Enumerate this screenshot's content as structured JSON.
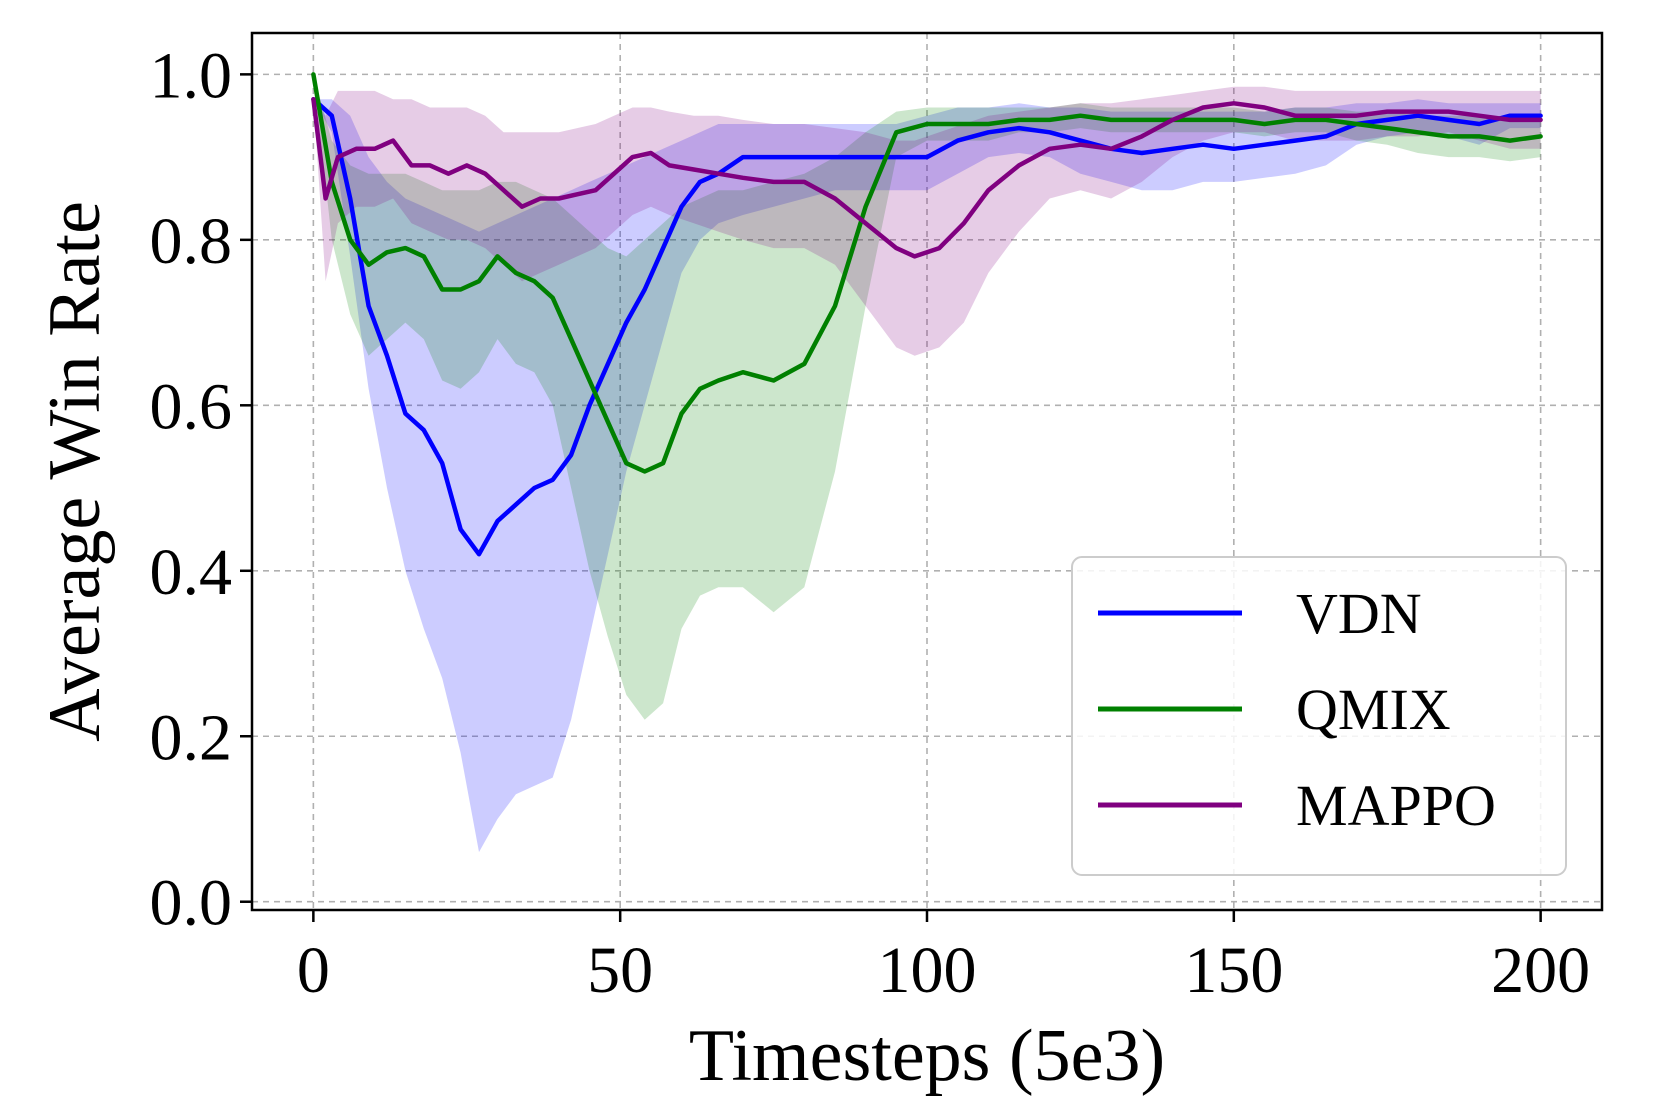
{
  "chart_data": {
    "type": "line",
    "title": "",
    "xlabel": "Timesteps (5e3)",
    "ylabel": "Average Win Rate",
    "xlim": [
      -10,
      210
    ],
    "ylim": [
      -0.01,
      1.05
    ],
    "xticks": [
      0,
      50,
      100,
      150,
      200
    ],
    "yticks": [
      0.0,
      0.2,
      0.4,
      0.6,
      0.8,
      1.0
    ],
    "xtick_labels": [
      "0",
      "50",
      "100",
      "150",
      "200"
    ],
    "ytick_labels": [
      "0.0",
      "0.2",
      "0.4",
      "0.6",
      "0.8",
      "1.0"
    ],
    "grid": true,
    "legend_position": "lower-right",
    "legend": [
      "VDN",
      "QMIX",
      "MAPPO"
    ],
    "series": [
      {
        "name": "VDN",
        "color": "#0000ff",
        "x": [
          0,
          3,
          6,
          9,
          12,
          15,
          18,
          21,
          24,
          27,
          30,
          33,
          36,
          39,
          42,
          45,
          48,
          51,
          54,
          57,
          60,
          63,
          66,
          70,
          75,
          80,
          85,
          90,
          95,
          100,
          105,
          110,
          115,
          120,
          125,
          130,
          135,
          140,
          145,
          150,
          155,
          160,
          165,
          170,
          175,
          180,
          185,
          190,
          195,
          200
        ],
        "values": [
          0.97,
          0.95,
          0.85,
          0.72,
          0.66,
          0.59,
          0.57,
          0.53,
          0.45,
          0.42,
          0.46,
          0.48,
          0.5,
          0.51,
          0.54,
          0.6,
          0.65,
          0.7,
          0.74,
          0.79,
          0.84,
          0.87,
          0.88,
          0.9,
          0.9,
          0.9,
          0.9,
          0.9,
          0.9,
          0.9,
          0.92,
          0.93,
          0.935,
          0.93,
          0.92,
          0.91,
          0.905,
          0.91,
          0.915,
          0.91,
          0.915,
          0.92,
          0.925,
          0.94,
          0.945,
          0.95,
          0.945,
          0.94,
          0.95,
          0.95
        ],
        "upper": [
          0.97,
          0.97,
          0.95,
          0.9,
          0.87,
          0.85,
          0.84,
          0.83,
          0.82,
          0.81,
          0.82,
          0.83,
          0.84,
          0.85,
          0.86,
          0.87,
          0.88,
          0.89,
          0.9,
          0.91,
          0.92,
          0.93,
          0.94,
          0.94,
          0.94,
          0.94,
          0.94,
          0.94,
          0.94,
          0.95,
          0.96,
          0.96,
          0.965,
          0.96,
          0.96,
          0.955,
          0.955,
          0.955,
          0.955,
          0.955,
          0.955,
          0.96,
          0.96,
          0.965,
          0.965,
          0.97,
          0.965,
          0.965,
          0.965,
          0.965
        ],
        "lower": [
          0.97,
          0.93,
          0.78,
          0.62,
          0.5,
          0.4,
          0.33,
          0.27,
          0.18,
          0.06,
          0.1,
          0.13,
          0.14,
          0.15,
          0.22,
          0.32,
          0.42,
          0.52,
          0.6,
          0.68,
          0.76,
          0.8,
          0.82,
          0.83,
          0.84,
          0.85,
          0.86,
          0.86,
          0.86,
          0.86,
          0.88,
          0.9,
          0.905,
          0.9,
          0.88,
          0.87,
          0.86,
          0.86,
          0.87,
          0.87,
          0.875,
          0.88,
          0.89,
          0.915,
          0.925,
          0.93,
          0.925,
          0.915,
          0.935,
          0.935
        ]
      },
      {
        "name": "QMIX",
        "color": "#008000",
        "x": [
          0,
          3,
          6,
          9,
          12,
          15,
          18,
          21,
          24,
          27,
          30,
          33,
          36,
          39,
          42,
          45,
          48,
          51,
          54,
          57,
          60,
          63,
          66,
          70,
          75,
          80,
          85,
          90,
          95,
          100,
          105,
          110,
          115,
          120,
          125,
          130,
          135,
          140,
          145,
          150,
          155,
          160,
          165,
          170,
          175,
          180,
          185,
          190,
          195,
          200
        ],
        "values": [
          1.0,
          0.87,
          0.8,
          0.77,
          0.785,
          0.79,
          0.78,
          0.74,
          0.74,
          0.75,
          0.78,
          0.76,
          0.75,
          0.73,
          0.68,
          0.63,
          0.58,
          0.53,
          0.52,
          0.53,
          0.59,
          0.62,
          0.63,
          0.64,
          0.63,
          0.65,
          0.72,
          0.84,
          0.93,
          0.94,
          0.94,
          0.94,
          0.945,
          0.945,
          0.95,
          0.945,
          0.945,
          0.945,
          0.945,
          0.945,
          0.94,
          0.945,
          0.945,
          0.94,
          0.935,
          0.93,
          0.925,
          0.925,
          0.92,
          0.925
        ],
        "upper": [
          1.0,
          0.92,
          0.89,
          0.88,
          0.88,
          0.88,
          0.87,
          0.86,
          0.86,
          0.86,
          0.87,
          0.87,
          0.86,
          0.85,
          0.83,
          0.81,
          0.79,
          0.78,
          0.8,
          0.82,
          0.84,
          0.85,
          0.86,
          0.86,
          0.87,
          0.88,
          0.9,
          0.93,
          0.955,
          0.96,
          0.96,
          0.96,
          0.96,
          0.96,
          0.965,
          0.96,
          0.96,
          0.96,
          0.96,
          0.96,
          0.955,
          0.96,
          0.96,
          0.955,
          0.955,
          0.95,
          0.95,
          0.95,
          0.945,
          0.945
        ],
        "lower": [
          1.0,
          0.8,
          0.71,
          0.66,
          0.68,
          0.7,
          0.68,
          0.63,
          0.62,
          0.64,
          0.68,
          0.65,
          0.64,
          0.6,
          0.5,
          0.4,
          0.32,
          0.25,
          0.22,
          0.24,
          0.33,
          0.37,
          0.38,
          0.38,
          0.35,
          0.38,
          0.52,
          0.72,
          0.9,
          0.92,
          0.92,
          0.92,
          0.93,
          0.93,
          0.935,
          0.93,
          0.93,
          0.93,
          0.93,
          0.93,
          0.925,
          0.93,
          0.93,
          0.92,
          0.915,
          0.905,
          0.9,
          0.9,
          0.895,
          0.9
        ]
      },
      {
        "name": "MAPPO",
        "color": "#800080",
        "x": [
          0,
          2,
          4,
          7,
          10,
          13,
          16,
          19,
          22,
          25,
          28,
          31,
          34,
          37,
          40,
          43,
          46,
          49,
          52,
          55,
          58,
          62,
          66,
          70,
          75,
          80,
          85,
          90,
          95,
          98,
          102,
          106,
          110,
          115,
          120,
          125,
          130,
          135,
          140,
          145,
          150,
          155,
          160,
          165,
          170,
          175,
          180,
          185,
          190,
          195,
          200
        ],
        "values": [
          0.97,
          0.85,
          0.9,
          0.91,
          0.91,
          0.92,
          0.89,
          0.89,
          0.88,
          0.89,
          0.88,
          0.86,
          0.84,
          0.85,
          0.85,
          0.855,
          0.86,
          0.88,
          0.9,
          0.905,
          0.89,
          0.885,
          0.88,
          0.875,
          0.87,
          0.87,
          0.85,
          0.82,
          0.79,
          0.78,
          0.79,
          0.82,
          0.86,
          0.89,
          0.91,
          0.915,
          0.91,
          0.925,
          0.945,
          0.96,
          0.965,
          0.96,
          0.95,
          0.95,
          0.95,
          0.955,
          0.955,
          0.955,
          0.95,
          0.945,
          0.945
        ],
        "upper": [
          0.97,
          0.95,
          0.98,
          0.98,
          0.98,
          0.97,
          0.97,
          0.96,
          0.96,
          0.96,
          0.95,
          0.93,
          0.93,
          0.93,
          0.93,
          0.935,
          0.94,
          0.95,
          0.96,
          0.96,
          0.955,
          0.95,
          0.95,
          0.945,
          0.94,
          0.94,
          0.935,
          0.93,
          0.92,
          0.92,
          0.93,
          0.94,
          0.95,
          0.955,
          0.96,
          0.965,
          0.965,
          0.97,
          0.975,
          0.98,
          0.985,
          0.985,
          0.98,
          0.98,
          0.98,
          0.98,
          0.98,
          0.98,
          0.98,
          0.98,
          0.98
        ],
        "lower": [
          0.97,
          0.75,
          0.82,
          0.84,
          0.84,
          0.85,
          0.82,
          0.81,
          0.8,
          0.8,
          0.79,
          0.77,
          0.75,
          0.76,
          0.77,
          0.78,
          0.79,
          0.81,
          0.83,
          0.84,
          0.83,
          0.82,
          0.81,
          0.8,
          0.79,
          0.79,
          0.77,
          0.72,
          0.67,
          0.66,
          0.67,
          0.7,
          0.76,
          0.81,
          0.85,
          0.86,
          0.85,
          0.87,
          0.9,
          0.92,
          0.93,
          0.93,
          0.92,
          0.92,
          0.92,
          0.925,
          0.925,
          0.93,
          0.92,
          0.91,
          0.91
        ]
      }
    ]
  }
}
